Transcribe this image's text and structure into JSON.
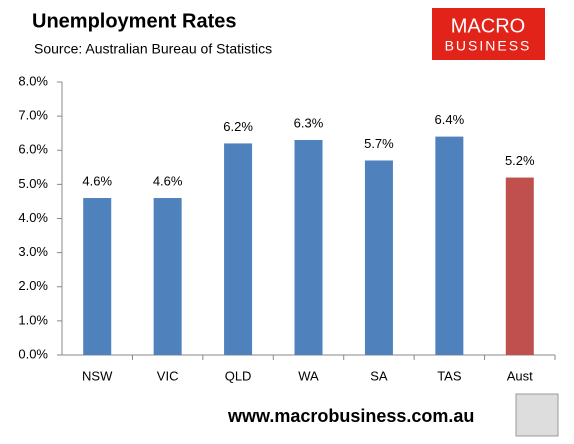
{
  "chart_data": {
    "type": "bar",
    "title": "Unemployment Rates",
    "subtitle": "Source: Australian Bureau of Statistics",
    "categories": [
      "NSW",
      "VIC",
      "QLD",
      "WA",
      "SA",
      "TAS",
      "Aust"
    ],
    "values": [
      4.6,
      4.6,
      6.2,
      6.3,
      5.7,
      6.4,
      5.2
    ],
    "value_labels": [
      "4.6%",
      "4.6%",
      "6.2%",
      "6.3%",
      "5.7%",
      "6.4%",
      "5.2%"
    ],
    "colors": [
      "#4f81bd",
      "#4f81bd",
      "#4f81bd",
      "#4f81bd",
      "#4f81bd",
      "#4f81bd",
      "#c0504d"
    ],
    "ylim": [
      0,
      8
    ],
    "yticks": [
      {
        "value": 0,
        "label": "0.0%"
      },
      {
        "value": 1,
        "label": "1.0%"
      },
      {
        "value": 2,
        "label": "2.0%"
      },
      {
        "value": 3,
        "label": "3.0%"
      },
      {
        "value": 4,
        "label": "4.0%"
      },
      {
        "value": 5,
        "label": "5.0%"
      },
      {
        "value": 6,
        "label": "6.0%"
      },
      {
        "value": 7,
        "label": "7.0%"
      },
      {
        "value": 8,
        "label": "8.0%"
      }
    ],
    "grid": false,
    "logo": {
      "line1": "MACRO",
      "line2": "BUSINESS"
    },
    "website": "www.macrobusiness.com.au"
  }
}
